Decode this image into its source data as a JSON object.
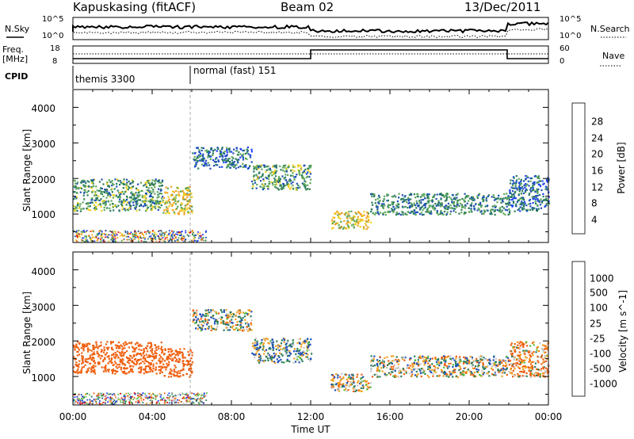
{
  "header": {
    "station": "Kapuskasing (fitACF)",
    "beam": "Beam 02",
    "date": "13/Dec/2011"
  },
  "noise_panel": {
    "left_label": "N.Sky",
    "right_label": "N.Search",
    "left_ticks": [
      "10^5",
      "10^0"
    ],
    "right_ticks": [
      "10^5",
      "10^0"
    ]
  },
  "freq_panel": {
    "left_label_line1": "Freq.",
    "left_label_line2": "[MHz]",
    "right_label": "Nave",
    "left_ticks": [
      "18",
      "8"
    ],
    "right_ticks": [
      "60",
      "0"
    ]
  },
  "cpid_panel": {
    "label": "CPID",
    "modes": [
      {
        "name": "themis 3300",
        "start_hour": 0
      },
      {
        "name": "normal (fast) 151",
        "start_hour": 6
      }
    ]
  },
  "colors": {
    "power": [
      "#1c3cff",
      "#1e4fb8",
      "#2a7d5a",
      "#5fa85a",
      "#f0d020",
      "#f0a020",
      "#f06010",
      "#e01010"
    ],
    "velocity": [
      "#1c3cff",
      "#1e4fb8",
      "#2a7d5a",
      "#55c040",
      "#c8c8c8",
      "#f0a020",
      "#f06010",
      "#e01010"
    ]
  },
  "chart_data": [
    {
      "type": "heatmap",
      "title": "Power",
      "xlabel": "",
      "ylabel": "Slant Range [km]",
      "xlim": [
        0,
        24
      ],
      "ylim": [
        200,
        4500
      ],
      "yticks": [
        "1000",
        "2000",
        "3000",
        "4000"
      ],
      "colorbar_label": "Power [dB]",
      "colorbar_ticks": [
        "4",
        "8",
        "12",
        "16",
        "20",
        "24",
        "28"
      ],
      "echo_regions": [
        {
          "t0": 0.0,
          "t1": 4.5,
          "r0": 1100,
          "r1": 2000,
          "level": 12
        },
        {
          "t0": 4.5,
          "t1": 6.0,
          "r0": 1000,
          "r1": 1800,
          "level": 18
        },
        {
          "t0": 6.0,
          "t1": 9.0,
          "r0": 2300,
          "r1": 2900,
          "level": 8
        },
        {
          "t0": 9.0,
          "t1": 12.0,
          "r0": 1700,
          "r1": 2400,
          "level": 12
        },
        {
          "t0": 13.0,
          "t1": 15.0,
          "r0": 600,
          "r1": 1100,
          "level": 18
        },
        {
          "t0": 15.0,
          "t1": 22.0,
          "r0": 1000,
          "r1": 1600,
          "level": 10
        },
        {
          "t0": 22.0,
          "t1": 24.0,
          "r0": 1100,
          "r1": 2100,
          "level": 8
        }
      ]
    },
    {
      "type": "heatmap",
      "title": "Velocity",
      "xlabel": "Time UT",
      "ylabel": "Slant Range [km]",
      "xlim": [
        0,
        24
      ],
      "ylim": [
        200,
        4500
      ],
      "xticks": [
        "00:00",
        "04:00",
        "08:00",
        "12:00",
        "16:00",
        "20:00",
        "00:00"
      ],
      "yticks": [
        "1000",
        "2000",
        "3000",
        "4000"
      ],
      "colorbar_label": "Velocity [m s^-1]",
      "colorbar_ticks": [
        "1000",
        "500",
        "100",
        "25",
        "-25",
        "-100",
        "-500",
        "-1000"
      ],
      "echo_regions": [
        {
          "t0": 0.0,
          "t1": 4.5,
          "r0": 1100,
          "r1": 2000,
          "velocity": -300
        },
        {
          "t0": 4.5,
          "t1": 6.0,
          "r0": 1000,
          "r1": 1800,
          "velocity": -300
        },
        {
          "t0": 6.0,
          "t1": 9.0,
          "r0": 2300,
          "r1": 2900,
          "velocity": 0
        },
        {
          "t0": 9.0,
          "t1": 12.0,
          "r0": 1400,
          "r1": 2100,
          "velocity": 50
        },
        {
          "t0": 13.0,
          "t1": 15.0,
          "r0": 600,
          "r1": 1100,
          "velocity": 0
        },
        {
          "t0": 15.0,
          "t1": 22.0,
          "r0": 1000,
          "r1": 1600,
          "velocity": 0
        },
        {
          "t0": 22.0,
          "t1": 24.0,
          "r0": 1000,
          "r1": 2000,
          "velocity": -100
        }
      ]
    }
  ]
}
